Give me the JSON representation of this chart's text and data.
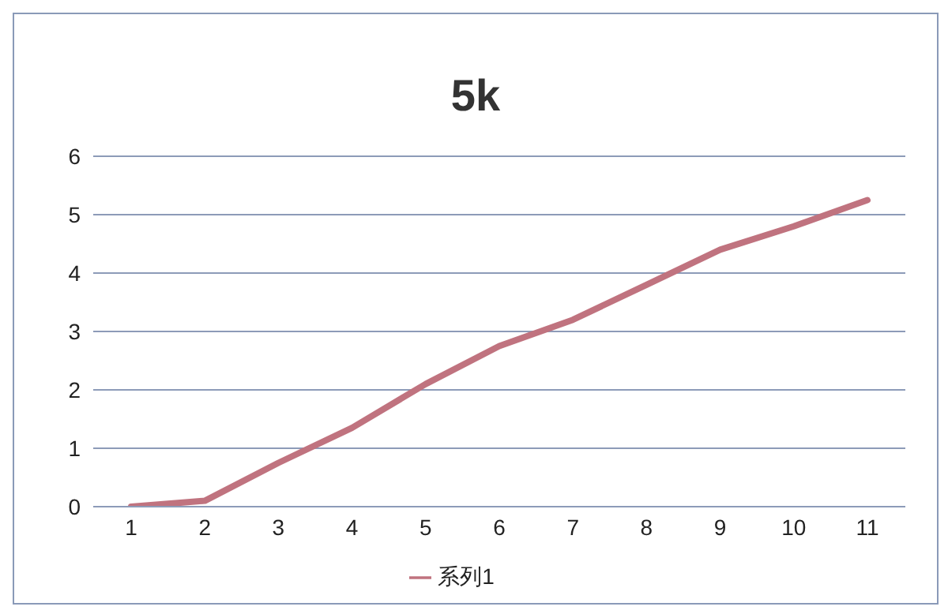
{
  "chart_data": {
    "type": "line",
    "title": "5k",
    "categories": [
      "1",
      "2",
      "3",
      "4",
      "5",
      "6",
      "7",
      "8",
      "9",
      "10",
      "11"
    ],
    "series": [
      {
        "name": "系列1",
        "color": "#c0737f",
        "values": [
          0,
          0.1,
          0.75,
          1.35,
          2.1,
          2.75,
          3.2,
          3.8,
          4.4,
          4.8,
          5.25
        ]
      }
    ],
    "ylim": [
      0,
      6
    ],
    "yticks": [
      0,
      1,
      2,
      3,
      4,
      5,
      6
    ],
    "grid": "y",
    "legend": "bottom",
    "marker": "none",
    "line_style": "solid"
  }
}
